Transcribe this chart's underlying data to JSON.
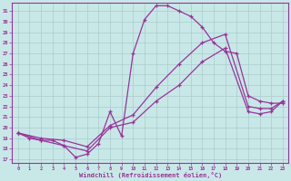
{
  "bg_color": "#c8e8e8",
  "line_color": "#993399",
  "grid_color": "#aacccc",
  "xlim_min": -0.5,
  "xlim_max": 23.5,
  "ylim_min": 16.7,
  "ylim_max": 31.8,
  "yticks": [
    17,
    18,
    19,
    20,
    21,
    22,
    23,
    24,
    25,
    26,
    27,
    28,
    29,
    30,
    31
  ],
  "xticks": [
    0,
    1,
    2,
    3,
    4,
    5,
    6,
    7,
    8,
    9,
    10,
    11,
    12,
    13,
    14,
    15,
    16,
    17,
    18,
    19,
    20,
    21,
    22,
    23
  ],
  "xlabel": "Windchill (Refroidissement éolien,°C)",
  "line1_x": [
    0,
    1,
    2,
    3,
    4,
    5,
    6,
    7,
    8,
    9,
    10,
    11,
    12,
    13,
    14,
    15,
    16,
    17,
    18,
    19,
    20,
    21,
    22,
    23
  ],
  "line1_y": [
    19.5,
    19.0,
    18.8,
    18.8,
    18.3,
    17.2,
    17.5,
    18.5,
    21.5,
    19.2,
    27.0,
    30.2,
    31.5,
    31.5,
    31.0,
    30.5,
    29.5,
    28.0,
    27.2,
    27.0,
    23.0,
    22.5,
    22.3,
    22.3
  ],
  "line2_x": [
    0,
    2,
    4,
    6,
    8,
    10,
    12,
    14,
    16,
    18,
    20,
    21,
    22,
    23
  ],
  "line2_y": [
    19.5,
    19.0,
    18.8,
    18.2,
    20.2,
    21.2,
    23.8,
    26.0,
    28.0,
    28.8,
    22.0,
    21.8,
    21.8,
    22.5
  ],
  "line3_x": [
    0,
    2,
    4,
    6,
    8,
    10,
    12,
    14,
    16,
    18,
    20,
    21,
    22,
    23
  ],
  "line3_y": [
    19.5,
    18.8,
    18.3,
    17.8,
    20.0,
    20.5,
    22.5,
    24.0,
    26.2,
    27.5,
    21.5,
    21.3,
    21.5,
    22.5
  ]
}
